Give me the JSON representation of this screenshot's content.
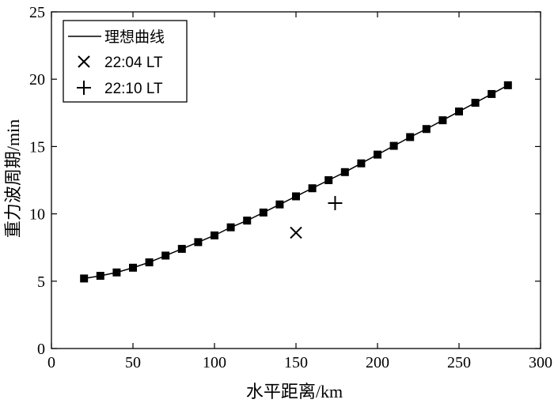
{
  "chart_data": {
    "type": "line",
    "xlabel": "水平距离/km",
    "ylabel": "重力波周期/min",
    "xlim": [
      0,
      300
    ],
    "ylim": [
      0,
      25
    ],
    "xticks": [
      0,
      50,
      100,
      150,
      200,
      250,
      300
    ],
    "yticks": [
      0,
      5,
      10,
      15,
      20,
      25
    ],
    "grid": false,
    "legend_position": "top-left",
    "series": [
      {
        "name": "理想曲线",
        "style": "line-with-square-markers",
        "color": "#000000",
        "x": [
          20,
          30,
          40,
          50,
          60,
          70,
          80,
          90,
          100,
          110,
          120,
          130,
          140,
          150,
          160,
          170,
          180,
          190,
          200,
          210,
          220,
          230,
          240,
          250,
          260,
          270,
          280
        ],
        "y": [
          5.2,
          5.4,
          5.65,
          6.0,
          6.4,
          6.9,
          7.4,
          7.9,
          8.4,
          9.0,
          9.5,
          10.1,
          10.7,
          11.3,
          11.9,
          12.5,
          13.1,
          13.75,
          14.4,
          15.05,
          15.7,
          16.3,
          16.95,
          17.6,
          18.25,
          18.9,
          19.55
        ]
      },
      {
        "name": "22:04 LT",
        "style": "x-marker",
        "color": "#000000",
        "x": [
          150
        ],
        "y": [
          8.6
        ]
      },
      {
        "name": "22:10 LT",
        "style": "plus-marker",
        "color": "#000000",
        "x": [
          174
        ],
        "y": [
          10.8
        ]
      }
    ]
  }
}
